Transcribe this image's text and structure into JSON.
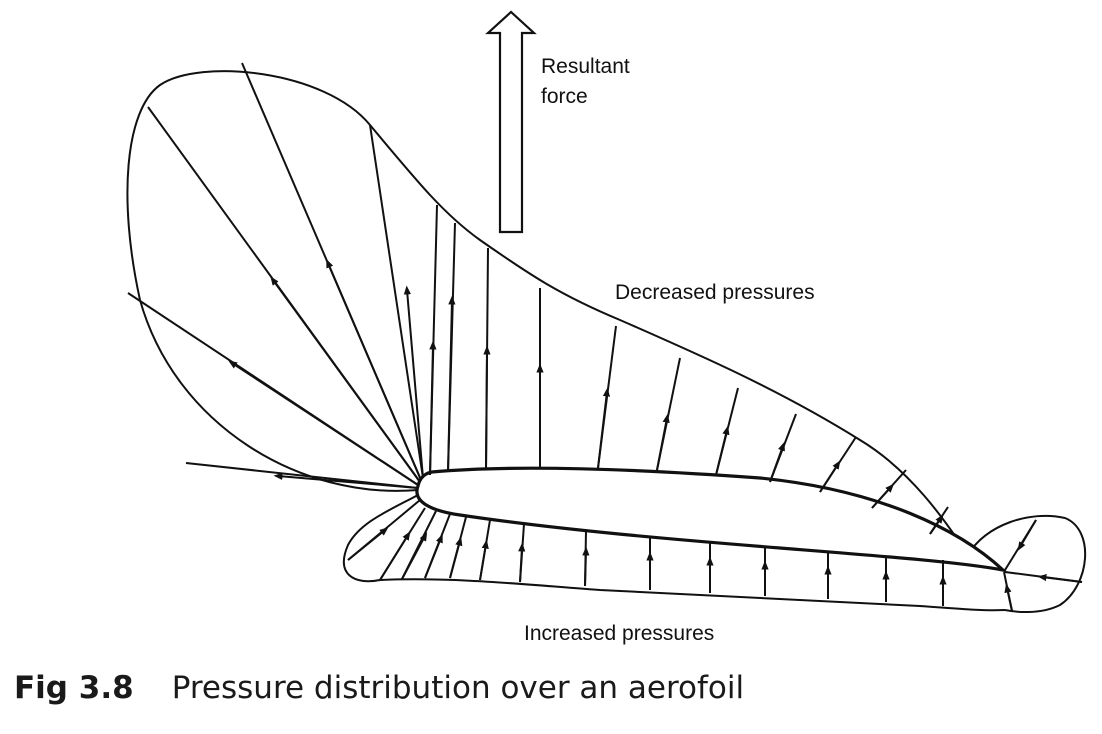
{
  "labels": {
    "resultant_line1": "Resultant",
    "resultant_line2": "force",
    "decreased": "Decreased pressures",
    "increased": "Increased pressures"
  },
  "caption": {
    "number": "Fig 3.8",
    "text": "Pressure distribution over an aerofoil"
  },
  "colors": {
    "ink": "#111111",
    "background": "#ffffff"
  }
}
